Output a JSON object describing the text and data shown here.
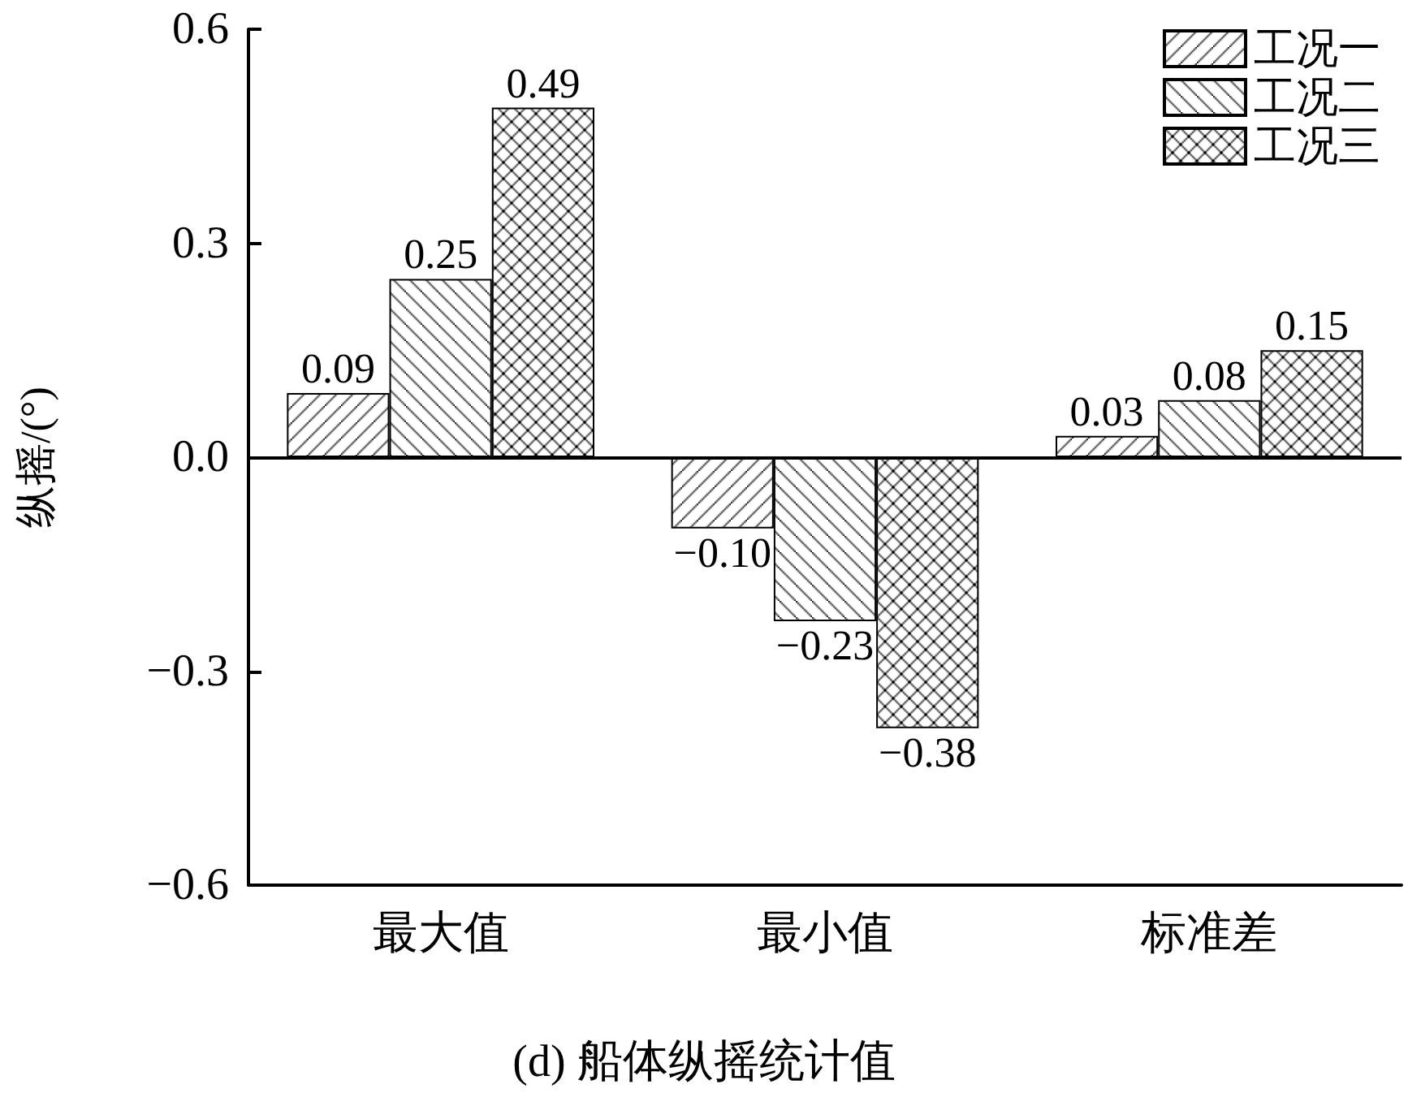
{
  "chart_data": {
    "type": "bar",
    "title": "(d) 船体纵摇统计值",
    "ylabel": "纵摇/(°)",
    "categories": [
      "最大值",
      "最小值",
      "标准差"
    ],
    "series": [
      {
        "name": "工况一",
        "color": "#000000",
        "values": [
          0.09,
          -0.1,
          0.03
        ],
        "value_labels": [
          "0.09",
          "−0.10",
          "0.03"
        ]
      },
      {
        "name": "工况二",
        "color": "#000000",
        "values": [
          0.25,
          -0.23,
          0.08
        ],
        "value_labels": [
          "0.25",
          "−0.23",
          "0.08"
        ]
      },
      {
        "name": "工况三",
        "color": "#000000",
        "values": [
          0.49,
          -0.38,
          0.15
        ],
        "value_labels": [
          "0.49",
          "−0.38",
          "0.15"
        ]
      }
    ],
    "ylim": [
      -0.6,
      0.6
    ],
    "yticks": [
      {
        "value": -0.6,
        "label": "−0.6"
      },
      {
        "value": -0.3,
        "label": "−0.3"
      },
      {
        "value": 0,
        "label": "0.0"
      },
      {
        "value": 0.3,
        "label": "0.3"
      },
      {
        "value": 0.6,
        "label": "0.6"
      }
    ],
    "ref_lines": [
      {
        "axis": "y",
        "value": 0,
        "color": "#000000",
        "line_style": "solid"
      }
    ],
    "grid": false,
    "legend": "top right"
  }
}
